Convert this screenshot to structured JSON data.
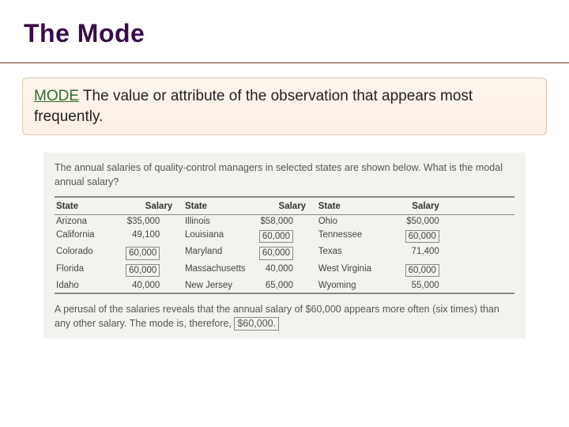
{
  "title": "The Mode",
  "definition": {
    "term": "MODE",
    "text": " The value or attribute of the observation that appears most frequently."
  },
  "example": {
    "prompt": "The annual salaries of quality-control managers in selected states are shown below. What is the modal annual salary?",
    "headers": {
      "state": "State",
      "salary": "Salary"
    },
    "col1": [
      {
        "state": "Arizona",
        "salary": "$35,000",
        "boxed": false
      },
      {
        "state": "California",
        "salary": "49,100",
        "boxed": false
      },
      {
        "state": "Colorado",
        "salary": "60,000",
        "boxed": true
      },
      {
        "state": "Florida",
        "salary": "60,000",
        "boxed": true
      },
      {
        "state": "Idaho",
        "salary": "40,000",
        "boxed": false
      }
    ],
    "col2": [
      {
        "state": "Illinois",
        "salary": "$58,000",
        "boxed": false
      },
      {
        "state": "Louisiana",
        "salary": "60,000",
        "boxed": true
      },
      {
        "state": "Maryland",
        "salary": "60,000",
        "boxed": true
      },
      {
        "state": "Massachusetts",
        "salary": "40,000",
        "boxed": false
      },
      {
        "state": "New Jersey",
        "salary": "65,000",
        "boxed": false
      }
    ],
    "col3": [
      {
        "state": "Ohio",
        "salary": "$50,000",
        "boxed": false
      },
      {
        "state": "Tennessee",
        "salary": "60,000",
        "boxed": true
      },
      {
        "state": "Texas",
        "salary": "71,400",
        "boxed": false
      },
      {
        "state": "West Virginia",
        "salary": "60,000",
        "boxed": true
      },
      {
        "state": "Wyoming",
        "salary": "55,000",
        "boxed": false
      }
    ],
    "answer_pre": "A perusal of the salaries reveals that the annual salary of $60,000 appears more often (six times) than any other salary. The mode is, therefore, ",
    "answer_val": "$60,000."
  },
  "colors": {
    "title_color": "#380c4a",
    "rule_color": "#6b3d1a",
    "def_bg_top": "#fdf5ed",
    "def_bg_bottom": "#fdf0e5",
    "def_border": "#d9c7b4",
    "term_color": "#346b2e",
    "panel_bg": "#f2f3ed",
    "tbl_border": "#888888",
    "text_color": "#444444"
  }
}
